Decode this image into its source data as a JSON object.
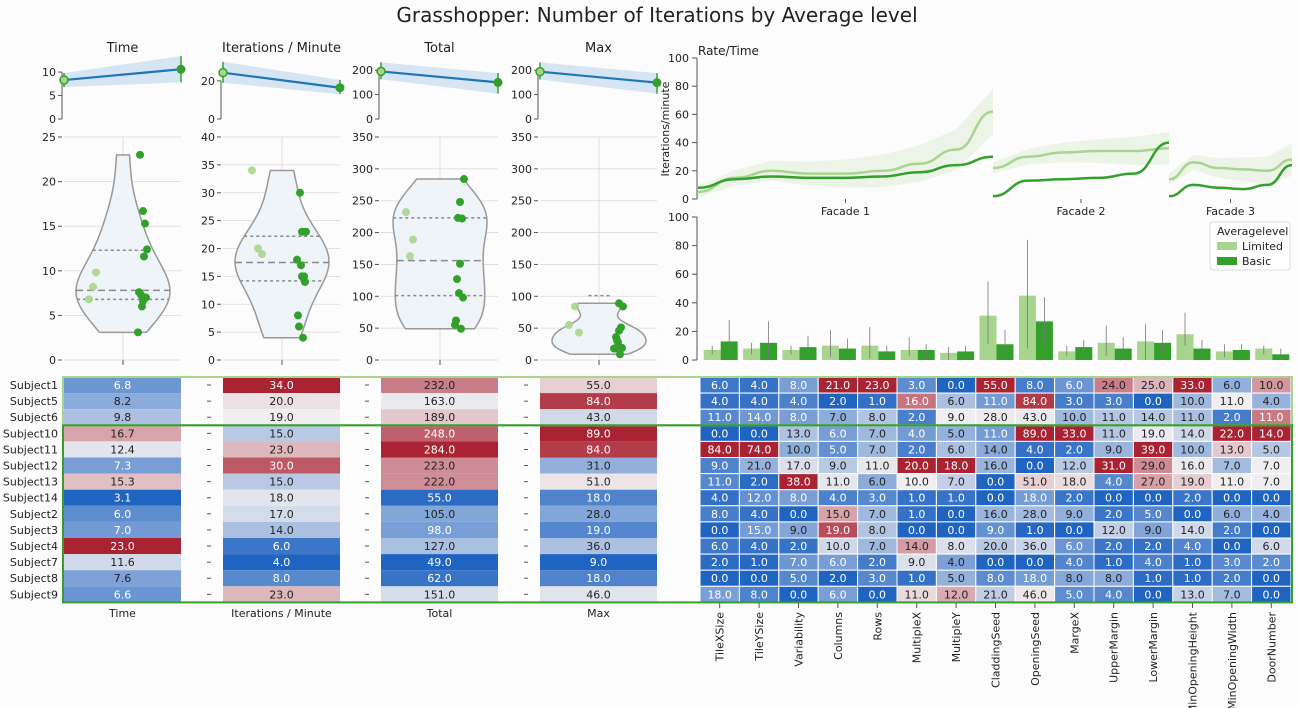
{
  "title": "Grasshopper: Number of Iterations by Average level",
  "colors": {
    "limited": "#a8d58e",
    "basic": "#33a02c",
    "trend": "#1f78b4",
    "band": "#c6dbef",
    "violin_fill": "#eef4f8",
    "violin_edge": "#999999",
    "box_limited": "#a8d58e",
    "box_basic": "#33a02c"
  },
  "subjects": [
    "Subject1",
    "Subject5",
    "Subject6",
    "Subject10",
    "Subject11",
    "Subject12",
    "Subject13",
    "Subject14",
    "Subject2",
    "Subject3",
    "Subject4",
    "Subject7",
    "Subject8",
    "Subject9"
  ],
  "groups": {
    "limited_rows": [
      0,
      1,
      2
    ],
    "basic_rows": [
      3,
      4,
      5,
      6,
      7,
      8,
      9,
      10,
      11,
      12,
      13
    ]
  },
  "chart_data": [
    {
      "type": "line",
      "title": "Time",
      "x": [
        "Limited",
        "Basic"
      ],
      "y": [
        8.3,
        10.6
      ],
      "band_lo": [
        6.8,
        7.8
      ],
      "band_hi": [
        9.8,
        13.4
      ],
      "ylim": [
        0,
        13
      ],
      "yticks": [
        0,
        5,
        10
      ]
    },
    {
      "type": "line",
      "title": "Iterations / Minute",
      "x": [
        "Limited",
        "Basic"
      ],
      "y": [
        24.3,
        16.4
      ],
      "band_lo": [
        19,
        13
      ],
      "band_hi": [
        30,
        20.5
      ],
      "ylim": [
        0,
        32
      ],
      "yticks": [
        0,
        20
      ]
    },
    {
      "type": "line",
      "title": "Total",
      "x": [
        "Limited",
        "Basic"
      ],
      "y": [
        195,
        150
      ],
      "band_lo": [
        163,
        104
      ],
      "band_hi": [
        232,
        188
      ],
      "ylim": [
        0,
        250
      ],
      "yticks": [
        0,
        100,
        200
      ]
    },
    {
      "type": "line",
      "title": "Max",
      "x": [
        "Limited",
        "Basic"
      ],
      "y": [
        194,
        149
      ],
      "band_lo": [
        162,
        104
      ],
      "band_hi": [
        232,
        188
      ],
      "ylim": [
        0,
        250
      ],
      "yticks": [
        0,
        100,
        200
      ]
    },
    {
      "type": "violin",
      "title": "Time",
      "ylim": [
        0,
        25
      ],
      "yticks": [
        0,
        5,
        10,
        15,
        20,
        25
      ],
      "quartiles": [
        6.8,
        7.8,
        12.3
      ],
      "limited_points": [
        6.8,
        8.2,
        9.8
      ],
      "basic_points": [
        16.7,
        12.4,
        7.3,
        15.3,
        3.1,
        6.0,
        7.0,
        23.0,
        11.6,
        7.6,
        6.6
      ]
    },
    {
      "type": "violin",
      "title": "Iterations / Minute",
      "ylim": [
        0,
        40
      ],
      "yticks": [
        0,
        5,
        10,
        15,
        20,
        25,
        30,
        35,
        40
      ],
      "quartiles": [
        14.2,
        17.5,
        22.2
      ],
      "limited_points": [
        34.0,
        20.0,
        19.0
      ],
      "basic_points": [
        15.0,
        23.0,
        30.0,
        15.0,
        18.0,
        17.0,
        14.0,
        6.0,
        4.0,
        8.0,
        23.0
      ]
    },
    {
      "type": "violin",
      "title": "Total",
      "ylim": [
        0,
        350
      ],
      "yticks": [
        0,
        50,
        100,
        150,
        200,
        250,
        300,
        350
      ],
      "quartiles": [
        101,
        156,
        223
      ],
      "limited_points": [
        232.0,
        163.0,
        189.0
      ],
      "basic_points": [
        248.0,
        284.0,
        223.0,
        222.0,
        55.0,
        105.0,
        98.0,
        127.0,
        49.0,
        62.0,
        151.0
      ]
    },
    {
      "type": "violin",
      "title": "Max",
      "ylim": [
        0,
        350
      ],
      "yticks": [
        0,
        50,
        100,
        150,
        200,
        250,
        300,
        350
      ],
      "quartiles": [
        101,
        156,
        223
      ],
      "limited_points": [
        55.0,
        84.0,
        43.0
      ],
      "basic_points": [
        89.0,
        84.0,
        31.0,
        51.0,
        18.0,
        28.0,
        19.0,
        36.0,
        9.0,
        18.0,
        46.0
      ]
    },
    {
      "type": "line",
      "title": "Rate/Time",
      "ylabel": "Iterations/minute",
      "ylim": [
        0,
        100
      ],
      "yticks": [
        0,
        20,
        40,
        60,
        80,
        100
      ],
      "facets": [
        "Facade 1",
        "Facade 2",
        "Facade 3"
      ],
      "series": [
        {
          "name": "Limited",
          "facets": [
            [
              5,
              15,
              20,
              18,
              18,
              20,
              25,
              35,
              62
            ],
            [
              22,
              30,
              33,
              34,
              34,
              36
            ],
            [
              14,
              26,
              22,
              21,
              20,
              28
            ]
          ]
        },
        {
          "name": "Basic",
          "facets": [
            [
              8,
              14,
              16,
              15,
              15,
              16,
              19,
              24,
              30
            ],
            [
              2,
              13,
              14,
              15,
              18,
              40
            ],
            [
              2,
              10,
              8,
              7,
              10,
              24
            ]
          ]
        }
      ]
    },
    {
      "type": "bar",
      "ylim": [
        0,
        100
      ],
      "yticks": [
        0,
        20,
        40,
        60,
        80,
        100
      ],
      "legend_title": "Averagelevel",
      "legend_position": "right",
      "categories": [
        "TileXSize",
        "TileYSize",
        "Variability",
        "Columns",
        "Rows",
        "MultipleX",
        "MultipleY",
        "CladdingSeed",
        "OpeningSeed",
        "MargeX",
        "UpperMargin",
        "LowerMargin",
        "MinOpeningHeight",
        "MinOpeningWidth",
        "DoorNumber"
      ],
      "series": [
        {
          "name": "Limited",
          "values": [
            7,
            8,
            7,
            10,
            10,
            7,
            5,
            31,
            45,
            6,
            12,
            13,
            18,
            6,
            8
          ],
          "err": [
            [
              4,
              10
            ],
            [
              4,
              12
            ],
            [
              4,
              10
            ],
            [
              2,
              21
            ],
            [
              1,
              23
            ],
            [
              3,
              16
            ],
            [
              0,
              9
            ],
            [
              11,
              55
            ],
            [
              8,
              84
            ],
            [
              3,
              10
            ],
            [
              3,
              24
            ],
            [
              0,
              25
            ],
            [
              10,
              33
            ],
            [
              2,
              11
            ],
            [
              4,
              10
            ]
          ]
        },
        {
          "name": "Basic",
          "values": [
            13,
            12,
            9,
            8,
            6,
            7,
            6,
            11,
            27,
            9,
            8,
            12,
            8,
            7,
            4
          ],
          "err": [
            [
              4,
              28
            ],
            [
              2,
              27
            ],
            [
              3,
              17
            ],
            [
              4,
              15
            ],
            [
              3,
              10
            ],
            [
              2,
              11
            ],
            [
              3,
              10
            ],
            [
              5,
              21
            ],
            [
              10,
              44
            ],
            [
              4,
              14
            ],
            [
              3,
              16
            ],
            [
              5,
              21
            ],
            [
              4,
              14
            ],
            [
              3,
              11
            ],
            [
              1,
              8
            ]
          ]
        }
      ]
    },
    {
      "type": "heatmap",
      "columns": [
        "Time",
        "Iterations / Minute",
        "Total",
        "Max"
      ],
      "rows": [
        [
          6.8,
          34.0,
          232.0,
          55.0
        ],
        [
          8.2,
          20.0,
          163.0,
          84.0
        ],
        [
          9.8,
          19.0,
          189.0,
          43.0
        ],
        [
          16.7,
          15.0,
          248.0,
          89.0
        ],
        [
          12.4,
          23.0,
          284.0,
          84.0
        ],
        [
          7.3,
          30.0,
          223.0,
          31.0
        ],
        [
          15.3,
          15.0,
          222.0,
          51.0
        ],
        [
          3.1,
          18.0,
          55.0,
          18.0
        ],
        [
          6.0,
          17.0,
          105.0,
          28.0
        ],
        [
          7.0,
          14.0,
          98.0,
          19.0
        ],
        [
          23.0,
          6.0,
          127.0,
          36.0
        ],
        [
          11.6,
          4.0,
          49.0,
          9.0
        ],
        [
          7.6,
          8.0,
          62.0,
          18.0
        ],
        [
          6.6,
          23.0,
          151.0,
          46.0
        ]
      ]
    },
    {
      "type": "heatmap",
      "columns": [
        "TileXSize",
        "TileYSize",
        "Variability",
        "Columns",
        "Rows",
        "MultipleX",
        "MultipleY",
        "CladdingSeed",
        "OpeningSeed",
        "MargeX",
        "UpperMargin",
        "LowerMargin",
        "MinOpeningHeight",
        "MinOpeningWidth",
        "DoorNumber"
      ],
      "rows": [
        [
          6.0,
          4.0,
          8.0,
          21.0,
          23.0,
          3.0,
          0.0,
          55.0,
          8.0,
          6.0,
          24.0,
          25.0,
          33.0,
          6.0,
          10.0
        ],
        [
          4.0,
          4.0,
          4.0,
          2.0,
          1.0,
          16.0,
          6.0,
          11.0,
          84.0,
          3.0,
          3.0,
          0.0,
          10.0,
          11.0,
          4.0
        ],
        [
          11.0,
          14.0,
          8.0,
          7.0,
          8.0,
          2.0,
          9.0,
          28.0,
          43.0,
          10.0,
          11.0,
          14.0,
          11.0,
          2.0,
          11.0
        ],
        [
          0.0,
          0.0,
          13.0,
          6.0,
          7.0,
          4.0,
          5.0,
          11.0,
          89.0,
          33.0,
          11.0,
          19.0,
          14.0,
          22.0,
          14.0
        ],
        [
          84.0,
          74.0,
          10.0,
          5.0,
          7.0,
          2.0,
          6.0,
          14.0,
          4.0,
          2.0,
          9.0,
          39.0,
          10.0,
          13.0,
          5.0
        ],
        [
          9.0,
          21.0,
          17.0,
          9.0,
          11.0,
          20.0,
          18.0,
          16.0,
          0.0,
          12.0,
          31.0,
          29.0,
          16.0,
          7.0,
          7.0
        ],
        [
          11.0,
          2.0,
          38.0,
          11.0,
          6.0,
          10.0,
          7.0,
          0.0,
          51.0,
          18.0,
          4.0,
          27.0,
          19.0,
          11.0,
          7.0
        ],
        [
          4.0,
          12.0,
          8.0,
          4.0,
          3.0,
          1.0,
          1.0,
          0.0,
          18.0,
          2.0,
          0.0,
          0.0,
          2.0,
          0.0,
          0.0
        ],
        [
          8.0,
          4.0,
          0.0,
          15.0,
          7.0,
          1.0,
          0.0,
          16.0,
          28.0,
          9.0,
          2.0,
          5.0,
          0.0,
          6.0,
          4.0
        ],
        [
          0.0,
          15.0,
          9.0,
          19.0,
          8.0,
          0.0,
          0.0,
          9.0,
          1.0,
          0.0,
          12.0,
          9.0,
          14.0,
          2.0,
          0.0
        ],
        [
          6.0,
          4.0,
          2.0,
          10.0,
          7.0,
          14.0,
          8.0,
          20.0,
          36.0,
          6.0,
          2.0,
          2.0,
          4.0,
          0.0,
          6.0
        ],
        [
          2.0,
          1.0,
          7.0,
          6.0,
          2.0,
          9.0,
          4.0,
          0.0,
          0.0,
          4.0,
          1.0,
          4.0,
          1.0,
          3.0,
          2.0
        ],
        [
          0.0,
          0.0,
          5.0,
          2.0,
          3.0,
          1.0,
          5.0,
          8.0,
          18.0,
          8.0,
          8.0,
          1.0,
          1.0,
          2.0,
          0.0
        ],
        [
          18.0,
          8.0,
          0.0,
          6.0,
          0.0,
          11.0,
          12.0,
          21.0,
          46.0,
          5.0,
          4.0,
          0.0,
          13.0,
          7.0,
          0.0
        ]
      ]
    }
  ]
}
